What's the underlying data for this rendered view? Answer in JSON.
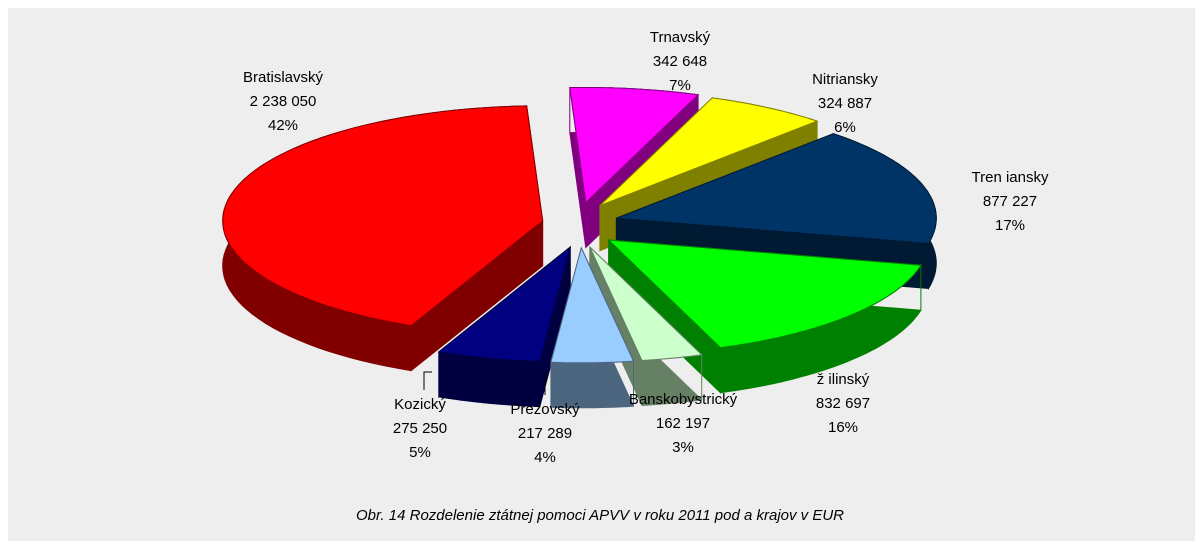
{
  "chart_data": {
    "type": "pie",
    "caption": "Obr. 14  Rozdelenie ztátnej pomoci APVV v roku 2011 pod a krajov v EUR",
    "categories": [
      "Trnavský",
      "Nitriansky",
      "Tren iansky",
      "ž ilinský",
      "Banskobystrický",
      "Prezovský",
      "Kozický",
      "Bratislavský"
    ],
    "values": [
      342648,
      324887,
      877227,
      832697,
      162197,
      217289,
      275250,
      2238050
    ],
    "value_labels": [
      "342 648",
      "324 887",
      "877 227",
      "832 697",
      "162 197",
      "217 289",
      "275 250",
      "2 238 050"
    ],
    "percent_labels": [
      "7%",
      "6%",
      "17%",
      "16%",
      "3%",
      "4%",
      "5%",
      "42%"
    ],
    "colors": [
      "#ff00ff",
      "#ffff00",
      "#003366",
      "#00ff00",
      "#ccffcc",
      "#99ccff",
      "#000080",
      "#ff0000"
    ]
  }
}
